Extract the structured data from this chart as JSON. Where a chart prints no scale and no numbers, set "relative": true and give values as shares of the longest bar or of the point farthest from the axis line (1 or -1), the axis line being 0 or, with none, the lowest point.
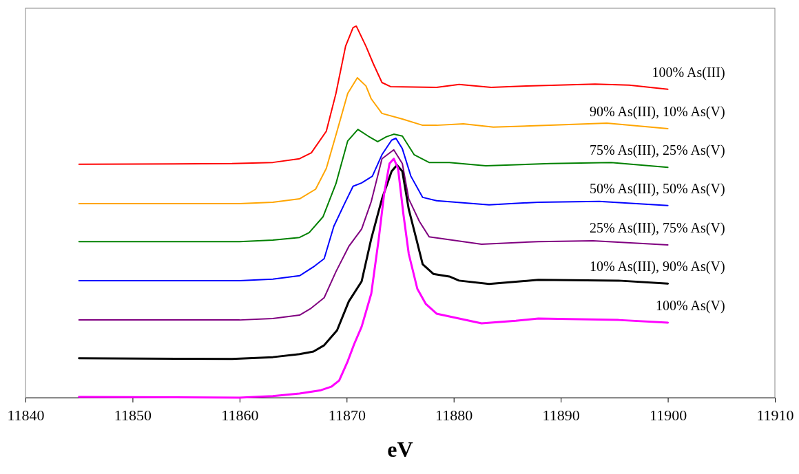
{
  "chart_data": {
    "type": "line",
    "xlabel": "eV",
    "relative": true,
    "xlim": [
      11840,
      11910
    ],
    "xticks": [
      11840,
      11850,
      11860,
      11870,
      11880,
      11890,
      11900,
      11910
    ],
    "grid": false,
    "tick_labels": "x",
    "series": [
      {
        "name": "100% As(III)",
        "color": "#ff0000",
        "x": [
          11845,
          11859.3,
          11863.1,
          11865.6,
          11866.7,
          11868.1,
          11869.0,
          11869.9,
          11870.6,
          11870.9,
          11871.8,
          11872.5,
          11873.3,
          11874.1,
          11878.4,
          11880.5,
          11883.5,
          11886.8,
          11893.2,
          11896.4,
          11900
        ],
        "values": [
          0.628,
          0.63,
          0.633,
          0.643,
          0.659,
          0.717,
          0.819,
          0.946,
          0.996,
          1.0,
          0.946,
          0.898,
          0.848,
          0.837,
          0.835,
          0.843,
          0.835,
          0.839,
          0.844,
          0.841,
          0.83
        ]
      },
      {
        "name": "90% As(III), 10% As(V)",
        "color": "#ffa500",
        "x": [
          11845,
          11860,
          11863.1,
          11865.6,
          11867.1,
          11868.1,
          11869.1,
          11870.1,
          11871.0,
          11871.8,
          11872.3,
          11873.3,
          11875.2,
          11877.1,
          11878.4,
          11880.9,
          11883.7,
          11885.8,
          11889,
          11894.3,
          11900
        ],
        "values": [
          0.522,
          0.522,
          0.526,
          0.535,
          0.561,
          0.617,
          0.717,
          0.819,
          0.861,
          0.839,
          0.804,
          0.765,
          0.75,
          0.733,
          0.733,
          0.737,
          0.728,
          0.73,
          0.733,
          0.739,
          0.724
        ]
      },
      {
        "name": "75% As(III), 25% As(V)",
        "color": "#008000",
        "x": [
          11845,
          11860,
          11863.1,
          11865.6,
          11866.5,
          11867.8,
          11869.0,
          11870.1,
          11871.05,
          11872.0,
          11872.9,
          11873.7,
          11874.4,
          11875.2,
          11876.3,
          11877.7,
          11879.6,
          11883,
          11889,
          11894.7,
          11900
        ],
        "values": [
          0.42,
          0.42,
          0.424,
          0.431,
          0.444,
          0.487,
          0.576,
          0.691,
          0.722,
          0.704,
          0.689,
          0.702,
          0.709,
          0.704,
          0.654,
          0.633,
          0.633,
          0.624,
          0.63,
          0.633,
          0.62
        ]
      },
      {
        "name": "50% As(III), 50% As(V)",
        "color": "#0000ff",
        "x": [
          11845,
          11860,
          11863.1,
          11865.6,
          11867,
          11867.9,
          11868.8,
          11869.8,
          11870.6,
          11871.4,
          11872.4,
          11873.3,
          11874.2,
          11874.6,
          11875.2,
          11876,
          11877.1,
          11878.4,
          11883.3,
          11887.9,
          11893.6,
          11900
        ],
        "values": [
          0.315,
          0.315,
          0.319,
          0.328,
          0.354,
          0.374,
          0.461,
          0.522,
          0.569,
          0.578,
          0.596,
          0.654,
          0.693,
          0.698,
          0.67,
          0.596,
          0.539,
          0.53,
          0.519,
          0.526,
          0.528,
          0.517
        ]
      },
      {
        "name": "25% As(III), 75% As(V)",
        "color": "#800080",
        "x": [
          11845,
          11860,
          11863.1,
          11865.6,
          11866.6,
          11867.9,
          11869.0,
          11870.2,
          11871.4,
          11872.3,
          11873.3,
          11874.4,
          11875.2,
          11875.8,
          11876.8,
          11877.7,
          11882.6,
          11887.9,
          11893,
          11900
        ],
        "values": [
          0.209,
          0.209,
          0.213,
          0.222,
          0.239,
          0.269,
          0.339,
          0.407,
          0.454,
          0.528,
          0.643,
          0.667,
          0.63,
          0.535,
          0.474,
          0.433,
          0.413,
          0.42,
          0.422,
          0.411
        ]
      },
      {
        "name": "10% As(III), 90% As(V)",
        "color": "#000000",
        "x": [
          11845,
          11859.3,
          11863.1,
          11865.6,
          11866.9,
          11867.9,
          11869.1,
          11870.2,
          11871.4,
          11872.3,
          11873.3,
          11874.2,
          11874.7,
          11875.2,
          11875.8,
          11876.5,
          11877.1,
          11878.1,
          11879.6,
          11880.5,
          11883.3,
          11887.9,
          11895.4,
          11900
        ],
        "values": [
          0.106,
          0.104,
          0.109,
          0.117,
          0.124,
          0.141,
          0.181,
          0.259,
          0.313,
          0.428,
          0.535,
          0.609,
          0.626,
          0.609,
          0.507,
          0.428,
          0.359,
          0.333,
          0.326,
          0.315,
          0.306,
          0.317,
          0.315,
          0.307
        ]
      },
      {
        "name": "100% As(V)",
        "color": "#ff00ff",
        "x": [
          11845,
          11860,
          11863.1,
          11865.6,
          11867.6,
          11868.6,
          11869.3,
          11870.1,
          11870.7,
          11871.4,
          11872.3,
          11873,
          11873.5,
          11874.0,
          11874.4,
          11874.8,
          11875.3,
          11875.8,
          11876.6,
          11877.4,
          11878.4,
          11880.5,
          11882.6,
          11885.8,
          11887.9,
          11895.4,
          11900
        ],
        "values": [
          0.002,
          0,
          0.004,
          0.011,
          0.02,
          0.03,
          0.046,
          0.098,
          0.144,
          0.191,
          0.28,
          0.428,
          0.548,
          0.63,
          0.643,
          0.617,
          0.494,
          0.387,
          0.293,
          0.252,
          0.226,
          0.213,
          0.2,
          0.207,
          0.213,
          0.209,
          0.202
        ]
      }
    ]
  }
}
